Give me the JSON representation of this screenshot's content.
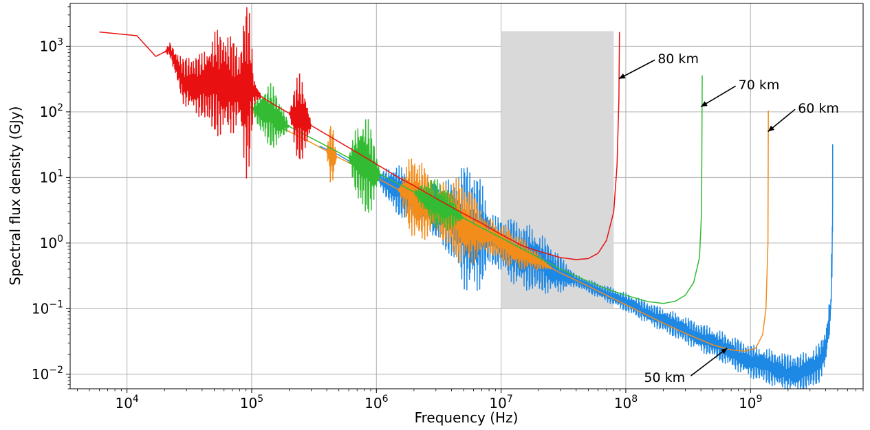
{
  "chart_data": {
    "type": "line",
    "title": "",
    "xlabel": "Frequency (Hz)",
    "ylabel": "Spectral flux density (GJy)",
    "xscale": "log",
    "yscale": "log",
    "xlim": [
      3500,
      8000000000
    ],
    "ylim": [
      0.006,
      4500
    ],
    "grid": true,
    "legend": "none",
    "x_ticks": [
      {
        "base": "10",
        "exp": "4",
        "value": 10000
      },
      {
        "base": "10",
        "exp": "5",
        "value": 100000
      },
      {
        "base": "10",
        "exp": "6",
        "value": 1000000
      },
      {
        "base": "10",
        "exp": "7",
        "value": 10000000
      },
      {
        "base": "10",
        "exp": "8",
        "value": 100000000
      },
      {
        "base": "10",
        "exp": "9",
        "value": 1000000000
      }
    ],
    "y_ticks": [
      {
        "base": "10",
        "exp": "−2",
        "value": 0.01
      },
      {
        "base": "10",
        "exp": "−1",
        "value": 0.1
      },
      {
        "base": "10",
        "exp": "0",
        "value": 1
      },
      {
        "base": "10",
        "exp": "1",
        "value": 10
      },
      {
        "base": "10",
        "exp": "2",
        "value": 100
      },
      {
        "base": "10",
        "exp": "3",
        "value": 1000
      }
    ],
    "shaded_region": {
      "x": [
        10000000,
        80000000
      ],
      "y": [
        0.1,
        1700
      ],
      "color": "#d9d9d9"
    },
    "series": [
      {
        "color": "#1e88e5",
        "x": [
          350000,
          500000,
          700000,
          1000000,
          1500000,
          2000000,
          3000000,
          4000000,
          5000000,
          7000000,
          10000000,
          15000000,
          20000000,
          30000000,
          50000000,
          70000000,
          100000000,
          150000000,
          200000000,
          300000000,
          500000000,
          700000000,
          1000000000,
          1500000000,
          2000000000,
          2500000000,
          3000000000,
          3500000000,
          4000000000,
          4400000000,
          4550000000,
          4560000000
        ],
        "y": [
          30,
          22,
          15,
          10,
          6.2,
          4.5,
          3,
          2.3,
          1.85,
          1.35,
          0.95,
          0.64,
          0.5,
          0.34,
          0.22,
          0.17,
          0.125,
          0.087,
          0.067,
          0.047,
          0.03,
          0.022,
          0.016,
          0.0123,
          0.0107,
          0.0105,
          0.0115,
          0.014,
          0.025,
          0.1,
          1.5,
          32
        ],
        "noise": [
          [
            1000000,
            2.5,
            0.4
          ],
          [
            2000000,
            4.5,
            0.6
          ],
          [
            4000000,
            2.0,
            0.45
          ],
          [
            5000000,
            8.0,
            0.5
          ],
          [
            10000000,
            22000000,
            0.35
          ]
        ]
      },
      {
        "color": "#f28c1b",
        "x": [
          100000,
          150000,
          200000,
          300000,
          500000,
          700000,
          1000000,
          1500000,
          2000000,
          3000000,
          5000000,
          7000000,
          10000000,
          20000000,
          30000000,
          50000000,
          70000000,
          100000000,
          200000000,
          300000000,
          500000000,
          700000000,
          900000000,
          1100000000,
          1250000000,
          1330000000,
          1380000000,
          1390000000
        ],
        "y": [
          100,
          66,
          50,
          34,
          20,
          14.5,
          10,
          6.5,
          5,
          3.3,
          2.0,
          1.45,
          1.0,
          0.52,
          0.35,
          0.22,
          0.16,
          0.115,
          0.06,
          0.042,
          0.028,
          0.0235,
          0.0225,
          0.025,
          0.04,
          0.1,
          1.0,
          105
        ],
        "noise": [
          [
            400000,
            1.2,
            0.5
          ],
          [
            1500000,
            2.0,
            0.7
          ],
          [
            2500000,
            3.0,
            0.6
          ],
          [
            4000000,
            6.5,
            0.3
          ]
        ]
      },
      {
        "color": "#33bb33",
        "x": [
          28000,
          50000,
          70000,
          100000,
          150000,
          200000,
          300000,
          500000,
          700000,
          1000000,
          1500000,
          2000000,
          3000000,
          5000000,
          7000000,
          10000000,
          20000000,
          30000000,
          50000000,
          70000000,
          100000000,
          150000000,
          200000000,
          250000000,
          300000000,
          350000000,
          390000000,
          405000000,
          410000000
        ],
        "y": [
          360,
          300,
          180,
          115,
          82,
          60,
          40,
          24,
          17,
          12,
          8,
          6,
          4,
          2.4,
          1.7,
          1.2,
          0.6,
          0.4,
          0.26,
          0.2,
          0.16,
          0.128,
          0.12,
          0.13,
          0.16,
          0.25,
          0.6,
          3,
          360
        ],
        "noise": [
          [
            100000,
            2.0,
            0.5
          ],
          [
            300000,
            1.0,
            0.6
          ],
          [
            600000,
            1.8,
            0.8
          ],
          [
            2000000,
            2.5,
            0.4
          ]
        ]
      },
      {
        "color": "#e81010",
        "x": [
          6000,
          12000,
          17000,
          22000,
          28000,
          40000,
          60000,
          100000,
          150000,
          200000,
          300000,
          500000,
          700000,
          1000000,
          1500000,
          2000000,
          3000000,
          5000000,
          7000000,
          10000000,
          15000000,
          20000000,
          30000000,
          40000000,
          50000000,
          60000000,
          70000000,
          80000000,
          85000000,
          88000000,
          89000000
        ],
        "y": [
          1650,
          1450,
          700,
          900,
          300,
          250,
          280,
          210,
          130,
          95,
          62,
          35,
          24,
          16,
          10,
          7.5,
          4.8,
          2.8,
          2.0,
          1.35,
          0.9,
          0.75,
          0.6,
          0.56,
          0.58,
          0.7,
          1.1,
          3.0,
          15,
          150,
          1650
        ],
        "noise": [
          [
            20000,
            4.0,
            0.5
          ],
          [
            40000,
            3.0,
            0.6
          ],
          [
            80000,
            1.3,
            1.0
          ],
          [
            200000,
            1.5,
            0.7
          ],
          [
            350000,
            0.6,
            0.2
          ]
        ]
      }
    ],
    "annotations": [
      {
        "text": "80 km",
        "xy": [
          88000000,
          320
        ],
        "xytext": [
          180000000,
          650
        ],
        "ha": "left"
      },
      {
        "text": "70 km",
        "xy": [
          400000000,
          120
        ],
        "xytext": [
          800000000,
          260
        ],
        "ha": "left"
      },
      {
        "text": "60 km",
        "xy": [
          1380000000,
          50
        ],
        "xytext": [
          2400000000,
          115
        ],
        "ha": "left"
      },
      {
        "text": "50 km",
        "xy": [
          650000000,
          0.025
        ],
        "xytext": [
          140000000,
          0.009
        ],
        "ha": "left"
      }
    ]
  }
}
